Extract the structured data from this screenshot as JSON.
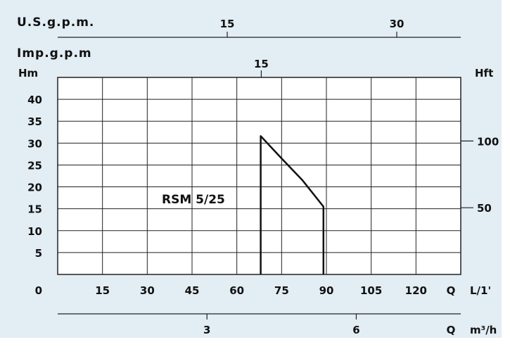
{
  "chart_data": {
    "type": "line",
    "title": "",
    "series": [
      {
        "name": "RSM 5/25",
        "x": [
          68,
          68,
          75,
          82,
          89,
          89
        ],
        "y": [
          0,
          31.6,
          26.5,
          21.5,
          15.5,
          0
        ]
      }
    ],
    "curve_label": "RSM 5/25",
    "xlim": [
      0,
      135
    ],
    "ylim": [
      0,
      45
    ],
    "grid": true,
    "x_axis": {
      "label": "L/1'",
      "end_symbol": "Q",
      "ticks": [
        0,
        15,
        30,
        45,
        60,
        75,
        90,
        105,
        120
      ]
    },
    "x_axis_m3h": {
      "label": "m³/h",
      "end_symbol": "Q",
      "ticks": [
        3,
        6
      ]
    },
    "y_axis_left": {
      "label": "Hm",
      "ticks": [
        5,
        10,
        15,
        20,
        25,
        30,
        35,
        40
      ]
    },
    "y_axis_right": {
      "label": "Hft",
      "ticks": [
        50,
        100
      ]
    },
    "top_axis_us": {
      "label": "U.S.g.p.m.",
      "ticks": [
        15,
        30
      ]
    },
    "top_axis_imp": {
      "label": "Imp.g.p.m",
      "ticks": [
        15
      ]
    },
    "colors": {
      "background": "#e2edf4",
      "plot_area": "#ffffff",
      "grid": "#222222",
      "curve": "#111111"
    }
  }
}
